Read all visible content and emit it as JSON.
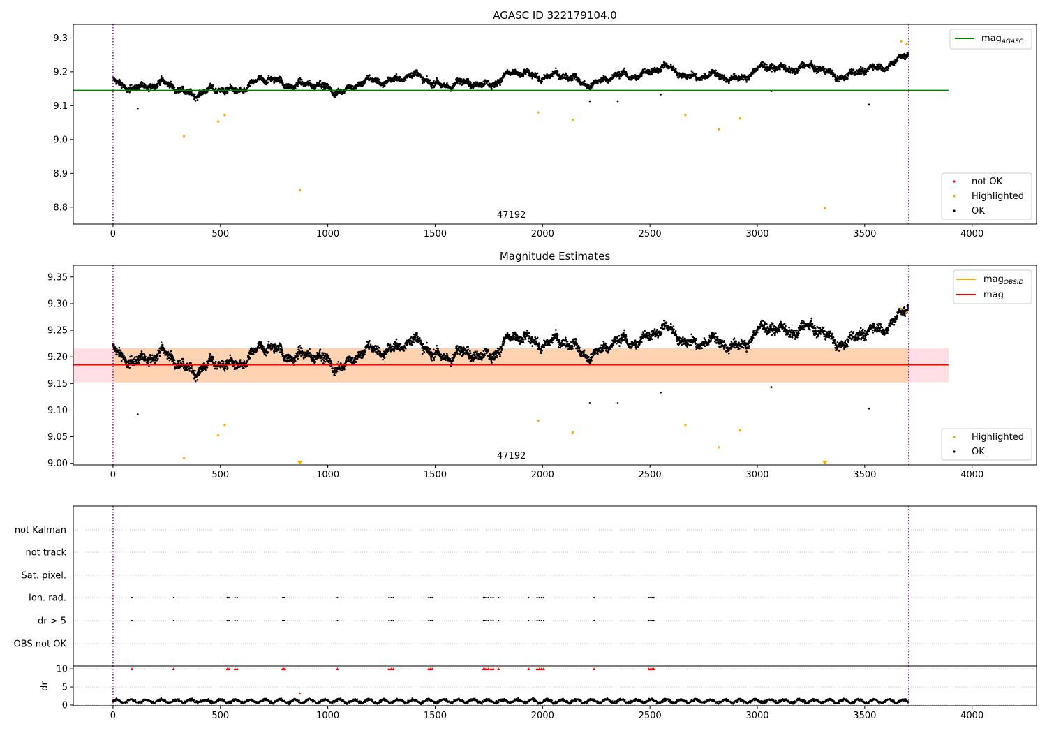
{
  "chart_data": [
    {
      "type": "scatter",
      "title": "AGASC ID 322179104.0",
      "xlim": [
        -185,
        4300
      ],
      "ylim": [
        8.75,
        9.34
      ],
      "xticks": [
        0,
        500,
        1000,
        1500,
        2000,
        2500,
        3000,
        3500,
        4000
      ],
      "xtick_labels": [
        "0",
        "500",
        "1000",
        "1500",
        "2000",
        "2500",
        "3000",
        "3500",
        "4000"
      ],
      "yticks": [
        8.8,
        8.9,
        9.0,
        9.1,
        9.2,
        9.3
      ],
      "ytick_labels": [
        "8.8",
        "8.9",
        "9.0",
        "9.1",
        "9.2",
        "9.3"
      ],
      "grid": false,
      "annotation": "47192",
      "annotation_x": 1855,
      "vlines": [
        0,
        3705
      ],
      "hline_agasc": 9.145,
      "legend_upper": {
        "placement": "top-right",
        "entry": "mag",
        "subscript": "AGASC"
      },
      "legend_lower": {
        "placement": "bottom-right",
        "entries": [
          "not OK",
          "Highlighted",
          "OK"
        ]
      },
      "highlighted": {
        "x": [
          330,
          490,
          520,
          870,
          1980,
          2140,
          2665,
          2820,
          2920,
          3315,
          3670,
          3695
        ],
        "y": [
          9.01,
          9.053,
          9.072,
          8.85,
          9.08,
          9.058,
          9.072,
          9.03,
          9.062,
          8.797,
          9.29,
          9.283
        ]
      },
      "outliers": {
        "x": [
          115,
          2220,
          2350,
          2550,
          3065,
          3520
        ],
        "y": [
          9.092,
          9.113,
          9.113,
          9.133,
          9.143,
          9.103
        ]
      }
    },
    {
      "type": "scatter",
      "title": "Magnitude Estimates",
      "xlim": [
        -185,
        4300
      ],
      "ylim": [
        8.997,
        9.372
      ],
      "xticks": [
        0,
        500,
        1000,
        1500,
        2000,
        2500,
        3000,
        3500,
        4000
      ],
      "xtick_labels": [
        "0",
        "500",
        "1000",
        "1500",
        "2000",
        "2500",
        "3000",
        "3500",
        "4000"
      ],
      "yticks": [
        9.0,
        9.05,
        9.1,
        9.15,
        9.2,
        9.25,
        9.3,
        9.35
      ],
      "ytick_labels": [
        "9.00",
        "9.05",
        "9.10",
        "9.15",
        "9.20",
        "9.25",
        "9.30",
        "9.35"
      ],
      "grid": false,
      "annotation": "47192",
      "annotation_x": 1855,
      "vlines": [
        0,
        3705
      ],
      "hline_mag": 9.185,
      "band_outer": [
        9.152,
        9.216
      ],
      "legend_upper": {
        "placement": "top-right",
        "entries": [
          {
            "name": "mag",
            "subscript": "OBSID"
          },
          {
            "name": "mag",
            "subscript": ""
          }
        ]
      },
      "legend_lower": {
        "placement": "bottom-right",
        "entries": [
          "Highlighted",
          "OK"
        ]
      },
      "highlighted": {
        "x": [
          330,
          490,
          520,
          1980,
          2140,
          2665,
          2820,
          2920,
          3670,
          3695
        ],
        "y": [
          9.01,
          9.053,
          9.072,
          9.08,
          9.058,
          9.072,
          9.03,
          9.062,
          9.29,
          9.283
        ]
      },
      "offscale": {
        "x": [
          870,
          3315
        ]
      },
      "outliers": {
        "x": [
          115,
          2220,
          2350,
          2550,
          3065,
          3520
        ],
        "y": [
          9.092,
          9.113,
          9.113,
          9.133,
          9.143,
          9.103
        ]
      }
    },
    {
      "type": "scatter",
      "title": "",
      "xlim": [
        -185,
        4300
      ],
      "categories": [
        "OBS not OK",
        "dr > 5",
        "Ion. rad.",
        "Sat. pixel.",
        "not track",
        "not Kalman"
      ],
      "flag_x": [
        88,
        282,
        532,
        540,
        568,
        578,
        790,
        795,
        800,
        1045,
        1285,
        1295,
        1305,
        1470,
        1478,
        1486,
        1725,
        1732,
        1740,
        1748,
        1760,
        1770,
        1795,
        1935,
        1975,
        1985,
        1995,
        2005,
        2240,
        2495,
        2503,
        2510,
        2518
      ],
      "vlines": [
        0,
        3705
      ]
    },
    {
      "type": "scatter",
      "title": "",
      "xlim": [
        -185,
        4300
      ],
      "ylim": [
        -0.2,
        10.8
      ],
      "xticks": [
        0,
        500,
        1000,
        1500,
        2000,
        2500,
        3000,
        3500,
        4000
      ],
      "xtick_labels": [
        "0",
        "500",
        "1000",
        "1500",
        "2000",
        "2500",
        "3000",
        "3500",
        "4000"
      ],
      "yticks": [
        0,
        5,
        10
      ],
      "ytick_labels": [
        "0",
        "5",
        "10"
      ],
      "ylabel": "dr",
      "grid": true,
      "capped_value": 10,
      "flag_x": [
        88,
        282,
        532,
        540,
        568,
        578,
        790,
        795,
        800,
        1045,
        1285,
        1295,
        1305,
        1470,
        1478,
        1486,
        1725,
        1732,
        1740,
        1748,
        1760,
        1770,
        1795,
        1935,
        1975,
        1985,
        1995,
        2005,
        2240,
        2495,
        2503,
        2510,
        2518
      ],
      "extra_point": {
        "x": 870,
        "y": 3.3
      },
      "vlines": [
        0,
        3705
      ]
    }
  ]
}
